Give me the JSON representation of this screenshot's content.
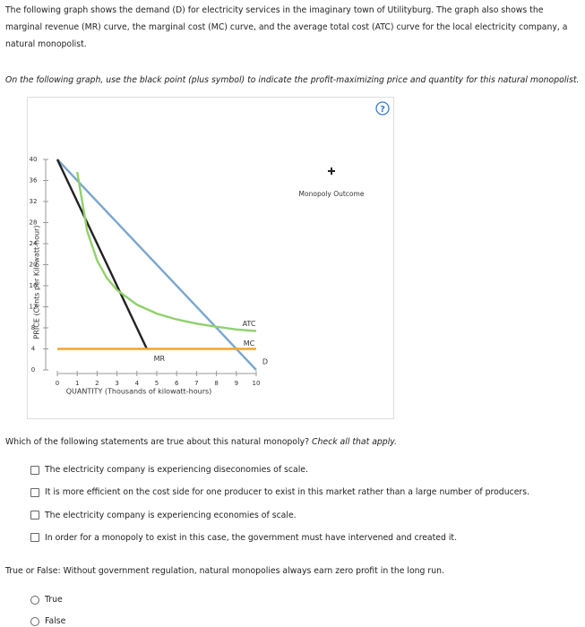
{
  "intro": "The following graph shows the demand (D) for electricity services in the imaginary town of Utilityburg. The graph also shows the marginal revenue (MR) curve, the marginal cost (MC) curve, and the average total cost (ATC) curve for the local electricity company, a natural monopolist.",
  "instruction": "On the following graph, use the black point (plus symbol) to indicate the profit-maximizing price and quantity for this natural monopolist.",
  "chart_data": {
    "type": "line",
    "y_label": "PRICE (Cents per Kilowatt-hour)",
    "x_label": "QUANTITY (Thousands of kilowatt-hours)",
    "xlim": [
      0,
      10
    ],
    "xticks": [
      0,
      1,
      2,
      3,
      4,
      5,
      6,
      7,
      8,
      9,
      10
    ],
    "ylim": [
      0,
      40
    ],
    "yticks": [
      0,
      4,
      8,
      12,
      16,
      20,
      24,
      28,
      32,
      36,
      40
    ],
    "legend_item": "Monopoly Outcome",
    "series": [
      {
        "name": "D",
        "color": "#7aa6cf",
        "x": [
          0,
          10
        ],
        "values": [
          40,
          0
        ]
      },
      {
        "name": "MR",
        "color": "#222222",
        "x": [
          0,
          4.5
        ],
        "values": [
          40,
          4
        ]
      },
      {
        "name": "ATC",
        "color": "#8fd16b",
        "x": [
          1,
          1.5,
          2,
          2.5,
          3,
          4,
          5,
          6,
          7,
          8,
          9,
          10
        ],
        "values": [
          37.6,
          26.4,
          20.8,
          17.4,
          15.2,
          12.4,
          10.7,
          9.6,
          8.8,
          8.2,
          7.7,
          7.4
        ]
      },
      {
        "name": "MC",
        "color": "#f0a530",
        "x": [
          0,
          10
        ],
        "values": [
          4,
          4
        ]
      }
    ]
  },
  "question1": {
    "prompt": "Which of the following statements are true about this natural monopoly?",
    "hint": "Check all that apply.",
    "options": [
      "The electricity company is experiencing diseconomies of scale.",
      "It is more efficient on the cost side for one producer to exist in this market rather than a large number of producers.",
      "The electricity company is experiencing economies of scale.",
      "In order for a monopoly to exist in this case, the government must have intervened and created it."
    ]
  },
  "question2": {
    "prompt": "True or False: Without government regulation, natural monopolies always earn zero profit in the long run.",
    "options": [
      "True",
      "False"
    ]
  }
}
